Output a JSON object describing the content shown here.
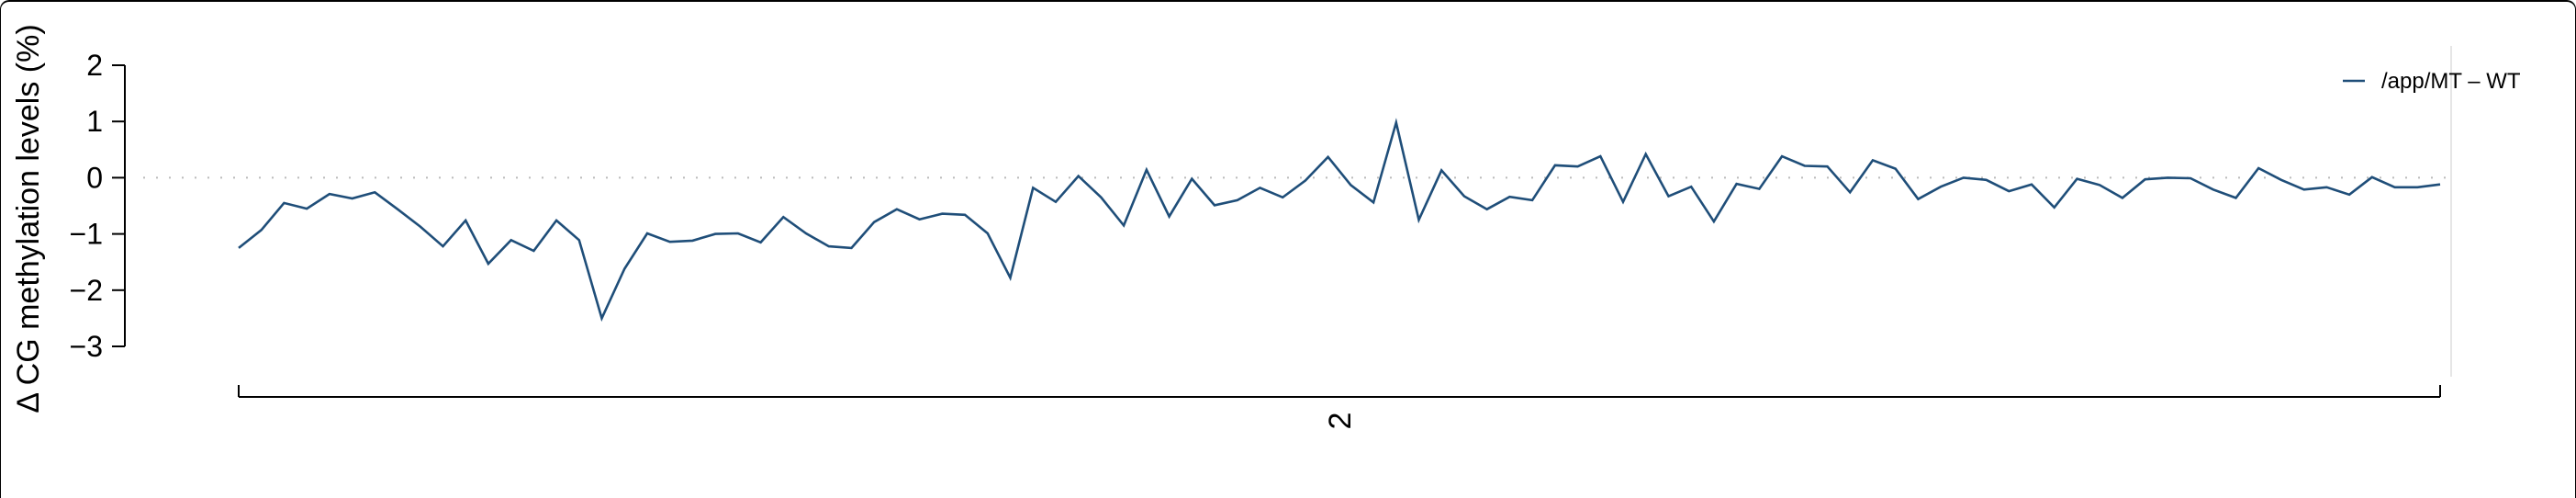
{
  "chart_data": {
    "type": "line",
    "ylabel": "Δ CG methylation levels (%)",
    "xlabel": "",
    "x_tick_labels": [
      "2"
    ],
    "y_ticks": [
      2,
      1,
      0,
      -1,
      -2,
      -3
    ],
    "ylim": [
      -3,
      2
    ],
    "zero_line": true,
    "grid": false,
    "legend_position": "top-right",
    "series": [
      {
        "name": "/app/MT – WT",
        "color": "#1f4e79",
        "values": [
          -1.25,
          -0.93,
          -0.45,
          -0.55,
          -0.29,
          -0.37,
          -0.26,
          -0.56,
          -0.87,
          -1.22,
          -0.76,
          -1.53,
          -1.11,
          -1.3,
          -0.76,
          -1.11,
          -2.5,
          -1.62,
          -0.99,
          -1.14,
          -1.12,
          -1.0,
          -0.99,
          -1.15,
          -0.7,
          -0.99,
          -1.22,
          -1.25,
          -0.79,
          -0.56,
          -0.74,
          -0.64,
          -0.66,
          -0.99,
          -1.78,
          -0.18,
          -0.43,
          0.03,
          -0.35,
          -0.85,
          0.14,
          -0.69,
          -0.02,
          -0.49,
          -0.4,
          -0.18,
          -0.35,
          -0.05,
          0.37,
          -0.13,
          -0.44,
          0.98,
          -0.75,
          0.13,
          -0.33,
          -0.56,
          -0.34,
          -0.4,
          0.22,
          0.2,
          0.38,
          -0.43,
          0.42,
          -0.33,
          -0.16,
          -0.78,
          -0.11,
          -0.2,
          0.38,
          0.21,
          0.2,
          -0.26,
          0.31,
          0.16,
          -0.38,
          -0.16,
          0.0,
          -0.04,
          -0.24,
          -0.12,
          -0.53,
          -0.02,
          -0.13,
          -0.36,
          -0.03,
          0.0,
          -0.01,
          -0.21,
          -0.36,
          0.17,
          -0.04,
          -0.21,
          -0.17,
          -0.3,
          0.01,
          -0.17,
          -0.17,
          -0.12
        ]
      }
    ]
  }
}
